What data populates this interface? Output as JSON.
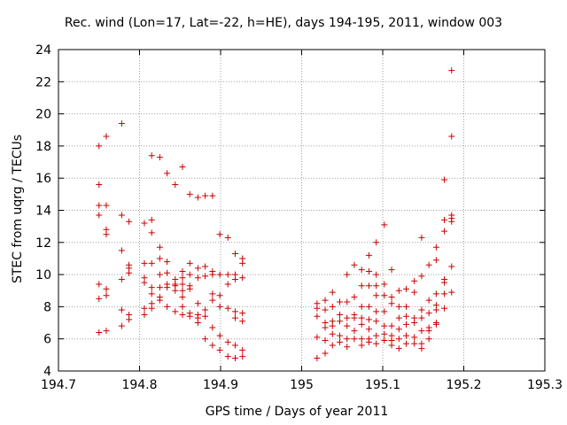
{
  "chart_data": {
    "type": "scatter",
    "title": "Rec. wind (Lon=17, Lat=-22, h=HE), days 194-195, 2011, window 003",
    "xlabel": "GPS time / Days of year 2011",
    "ylabel": "STEC from uqrg / TECUs",
    "xlim": [
      194.7,
      195.3
    ],
    "ylim": [
      4,
      24
    ],
    "xticks": [
      "194.7",
      "194.8",
      "194.9",
      "195",
      "195.1",
      "195.2",
      "195.3"
    ],
    "yticks": [
      "4",
      "6",
      "8",
      "10",
      "12",
      "14",
      "16",
      "18",
      "20",
      "22",
      "24"
    ],
    "grid": true,
    "marker": "+",
    "color": "#cc0000",
    "points": [
      [
        194.75,
        18.0
      ],
      [
        194.75,
        15.6
      ],
      [
        194.75,
        14.3
      ],
      [
        194.75,
        13.7
      ],
      [
        194.75,
        9.4
      ],
      [
        194.75,
        8.5
      ],
      [
        194.75,
        6.4
      ],
      [
        194.759,
        18.6
      ],
      [
        194.759,
        14.3
      ],
      [
        194.759,
        12.8
      ],
      [
        194.759,
        12.5
      ],
      [
        194.759,
        9.1
      ],
      [
        194.759,
        8.7
      ],
      [
        194.759,
        6.5
      ],
      [
        194.778,
        19.4
      ],
      [
        194.778,
        13.7
      ],
      [
        194.778,
        11.5
      ],
      [
        194.778,
        9.7
      ],
      [
        194.778,
        7.8
      ],
      [
        194.778,
        6.8
      ],
      [
        194.787,
        13.3
      ],
      [
        194.787,
        10.6
      ],
      [
        194.787,
        10.4
      ],
      [
        194.787,
        10.1
      ],
      [
        194.787,
        7.5
      ],
      [
        194.787,
        7.2
      ],
      [
        194.806,
        13.2
      ],
      [
        194.806,
        10.7
      ],
      [
        194.806,
        9.8
      ],
      [
        194.806,
        9.5
      ],
      [
        194.806,
        7.9
      ],
      [
        194.806,
        7.5
      ],
      [
        194.815,
        17.4
      ],
      [
        194.815,
        13.4
      ],
      [
        194.815,
        12.6
      ],
      [
        194.815,
        10.7
      ],
      [
        194.815,
        9.2
      ],
      [
        194.815,
        8.8
      ],
      [
        194.815,
        8.2
      ],
      [
        194.815,
        7.9
      ],
      [
        194.825,
        17.3
      ],
      [
        194.825,
        11.7
      ],
      [
        194.825,
        11.0
      ],
      [
        194.825,
        10.0
      ],
      [
        194.825,
        9.2
      ],
      [
        194.825,
        8.6
      ],
      [
        194.825,
        8.4
      ],
      [
        194.834,
        16.3
      ],
      [
        194.834,
        10.8
      ],
      [
        194.834,
        10.1
      ],
      [
        194.834,
        9.4
      ],
      [
        194.834,
        9.2
      ],
      [
        194.834,
        8.0
      ],
      [
        194.844,
        15.6
      ],
      [
        194.844,
        9.7
      ],
      [
        194.844,
        9.4
      ],
      [
        194.844,
        9.3
      ],
      [
        194.844,
        9.0
      ],
      [
        194.844,
        7.7
      ],
      [
        194.853,
        16.7
      ],
      [
        194.853,
        10.2
      ],
      [
        194.853,
        9.8
      ],
      [
        194.853,
        9.4
      ],
      [
        194.853,
        9.0
      ],
      [
        194.853,
        8.6
      ],
      [
        194.853,
        8.0
      ],
      [
        194.853,
        7.5
      ],
      [
        194.862,
        15.0
      ],
      [
        194.862,
        10.7
      ],
      [
        194.862,
        10.0
      ],
      [
        194.862,
        9.3
      ],
      [
        194.862,
        9.1
      ],
      [
        194.862,
        7.6
      ],
      [
        194.862,
        7.4
      ],
      [
        194.872,
        14.8
      ],
      [
        194.872,
        10.4
      ],
      [
        194.872,
        9.8
      ],
      [
        194.872,
        8.2
      ],
      [
        194.872,
        7.5
      ],
      [
        194.872,
        7.3
      ],
      [
        194.872,
        7.0
      ],
      [
        194.881,
        14.9
      ],
      [
        194.881,
        10.5
      ],
      [
        194.881,
        9.9
      ],
      [
        194.881,
        7.8
      ],
      [
        194.881,
        7.4
      ],
      [
        194.881,
        6.0
      ],
      [
        194.89,
        14.9
      ],
      [
        194.89,
        10.2
      ],
      [
        194.89,
        10.0
      ],
      [
        194.89,
        8.8
      ],
      [
        194.89,
        8.4
      ],
      [
        194.89,
        6.7
      ],
      [
        194.89,
        5.6
      ],
      [
        194.899,
        12.5
      ],
      [
        194.899,
        10.0
      ],
      [
        194.899,
        8.7
      ],
      [
        194.899,
        8.0
      ],
      [
        194.899,
        6.2
      ],
      [
        194.899,
        5.3
      ],
      [
        194.909,
        12.3
      ],
      [
        194.909,
        10.0
      ],
      [
        194.909,
        9.4
      ],
      [
        194.909,
        7.9
      ],
      [
        194.909,
        5.8
      ],
      [
        194.909,
        4.9
      ],
      [
        194.918,
        11.3
      ],
      [
        194.918,
        10.0
      ],
      [
        194.918,
        9.7
      ],
      [
        194.918,
        7.7
      ],
      [
        194.918,
        7.3
      ],
      [
        194.918,
        5.6
      ],
      [
        194.918,
        4.8
      ],
      [
        194.927,
        11.0
      ],
      [
        194.927,
        10.7
      ],
      [
        194.927,
        9.8
      ],
      [
        194.927,
        7.6
      ],
      [
        194.927,
        7.1
      ],
      [
        194.927,
        5.3
      ],
      [
        194.927,
        4.9
      ],
      [
        195.019,
        8.2
      ],
      [
        195.019,
        7.9
      ],
      [
        195.019,
        7.4
      ],
      [
        195.019,
        6.1
      ],
      [
        195.019,
        4.8
      ],
      [
        195.029,
        8.4
      ],
      [
        195.029,
        7.8
      ],
      [
        195.029,
        7.0
      ],
      [
        195.029,
        6.7
      ],
      [
        195.029,
        5.9
      ],
      [
        195.029,
        5.1
      ],
      [
        195.038,
        8.9
      ],
      [
        195.038,
        8.0
      ],
      [
        195.038,
        7.1
      ],
      [
        195.038,
        6.8
      ],
      [
        195.038,
        6.3
      ],
      [
        195.038,
        5.6
      ],
      [
        195.047,
        8.3
      ],
      [
        195.047,
        7.5
      ],
      [
        195.047,
        7.1
      ],
      [
        195.047,
        6.2
      ],
      [
        195.047,
        5.8
      ],
      [
        195.056,
        10.0
      ],
      [
        195.056,
        8.3
      ],
      [
        195.056,
        7.3
      ],
      [
        195.056,
        6.8
      ],
      [
        195.056,
        6.0
      ],
      [
        195.056,
        5.5
      ],
      [
        195.065,
        10.6
      ],
      [
        195.065,
        8.6
      ],
      [
        195.065,
        7.5
      ],
      [
        195.065,
        7.3
      ],
      [
        195.065,
        6.5
      ],
      [
        195.065,
        6.0
      ],
      [
        195.074,
        10.3
      ],
      [
        195.074,
        9.3
      ],
      [
        195.074,
        8.0
      ],
      [
        195.074,
        7.3
      ],
      [
        195.074,
        6.9
      ],
      [
        195.074,
        6.0
      ],
      [
        195.074,
        5.6
      ],
      [
        195.083,
        11.2
      ],
      [
        195.083,
        10.2
      ],
      [
        195.083,
        9.3
      ],
      [
        195.083,
        8.0
      ],
      [
        195.083,
        7.2
      ],
      [
        195.083,
        6.6
      ],
      [
        195.083,
        6.0
      ],
      [
        195.083,
        5.8
      ],
      [
        195.092,
        12.0
      ],
      [
        195.092,
        10.0
      ],
      [
        195.092,
        9.3
      ],
      [
        195.092,
        8.7
      ],
      [
        195.092,
        7.7
      ],
      [
        195.092,
        7.1
      ],
      [
        195.092,
        6.2
      ],
      [
        195.092,
        5.7
      ],
      [
        195.102,
        13.1
      ],
      [
        195.102,
        9.4
      ],
      [
        195.102,
        8.7
      ],
      [
        195.102,
        7.7
      ],
      [
        195.102,
        6.8
      ],
      [
        195.102,
        6.3
      ],
      [
        195.102,
        5.9
      ],
      [
        195.111,
        10.3
      ],
      [
        195.111,
        8.6
      ],
      [
        195.111,
        8.2
      ],
      [
        195.111,
        6.8
      ],
      [
        195.111,
        6.2
      ],
      [
        195.111,
        5.9
      ],
      [
        195.111,
        5.6
      ],
      [
        195.12,
        9.0
      ],
      [
        195.12,
        8.0
      ],
      [
        195.12,
        7.3
      ],
      [
        195.12,
        6.6
      ],
      [
        195.12,
        6.0
      ],
      [
        195.12,
        5.4
      ],
      [
        195.129,
        9.1
      ],
      [
        195.129,
        8.0
      ],
      [
        195.129,
        7.4
      ],
      [
        195.129,
        6.9
      ],
      [
        195.129,
        6.2
      ],
      [
        195.129,
        5.7
      ],
      [
        195.139,
        9.6
      ],
      [
        195.139,
        8.9
      ],
      [
        195.139,
        7.3
      ],
      [
        195.139,
        7.0
      ],
      [
        195.139,
        6.1
      ],
      [
        195.139,
        5.7
      ],
      [
        195.148,
        12.3
      ],
      [
        195.148,
        9.9
      ],
      [
        195.148,
        7.8
      ],
      [
        195.148,
        7.3
      ],
      [
        195.148,
        6.5
      ],
      [
        195.148,
        5.7
      ],
      [
        195.148,
        5.4
      ],
      [
        195.157,
        10.6
      ],
      [
        195.157,
        8.4
      ],
      [
        195.157,
        7.6
      ],
      [
        195.157,
        6.7
      ],
      [
        195.157,
        6.5
      ],
      [
        195.157,
        6.0
      ],
      [
        195.166,
        11.7
      ],
      [
        195.166,
        10.9
      ],
      [
        195.166,
        8.8
      ],
      [
        195.166,
        8.1
      ],
      [
        195.166,
        7.8
      ],
      [
        195.166,
        7.0
      ],
      [
        195.166,
        6.9
      ],
      [
        195.176,
        15.9
      ],
      [
        195.176,
        13.4
      ],
      [
        195.176,
        12.7
      ],
      [
        195.176,
        9.7
      ],
      [
        195.176,
        9.5
      ],
      [
        195.176,
        8.8
      ],
      [
        195.176,
        7.9
      ],
      [
        195.185,
        22.7
      ],
      [
        195.185,
        18.6
      ],
      [
        195.185,
        13.7
      ],
      [
        195.185,
        13.5
      ],
      [
        195.185,
        13.3
      ],
      [
        195.185,
        10.5
      ],
      [
        195.185,
        8.9
      ]
    ]
  }
}
